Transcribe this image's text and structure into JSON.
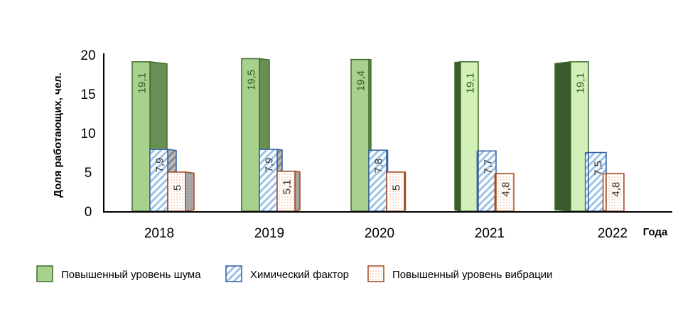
{
  "chart_data": {
    "type": "bar",
    "title": "",
    "xlabel": "Года",
    "ylabel": "Доля  работающих, чел.",
    "ylim": [
      0,
      20
    ],
    "yticks": [
      0,
      5,
      10,
      15,
      20
    ],
    "categories": [
      "2018",
      "2019",
      "2020",
      "2021",
      "2022"
    ],
    "series": [
      {
        "name": "Повышенный уровень шума",
        "values": [
          19.1,
          19.5,
          19.4,
          19.1,
          19.1
        ],
        "labels": [
          "19,1",
          "19,5",
          "19,4",
          "19,1",
          "19,1"
        ],
        "color": "#a9d18e",
        "edge": "#3f6b2a"
      },
      {
        "name": "Химический фактор",
        "values": [
          7.9,
          7.9,
          7.8,
          7.7,
          7.5
        ],
        "labels": [
          "7,9",
          "7,9",
          "7,8",
          "7,7",
          "7,5"
        ],
        "color": "#9dc3e6",
        "edge": "#2e5fa3"
      },
      {
        "name": "Повышенный уровень вибрации",
        "values": [
          5,
          5.1,
          5,
          4.8,
          4.8
        ],
        "labels": [
          "5",
          "5,1",
          "5",
          "4,8",
          "4,8"
        ],
        "color": "#fbe5d6",
        "edge": "#a0461c"
      }
    ],
    "legend_position": "bottom"
  }
}
